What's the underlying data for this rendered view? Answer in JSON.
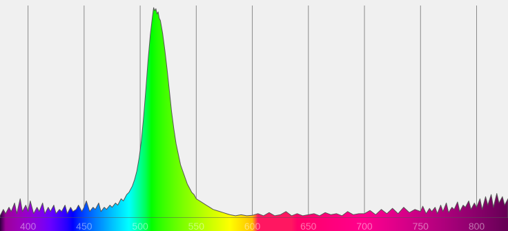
{
  "chart_data": {
    "type": "area",
    "title": "",
    "xlabel": "",
    "ylabel": "",
    "xlim": [
      375,
      828
    ],
    "ylim": [
      0,
      1.0
    ],
    "grid": true,
    "x_ticks": [
      400,
      450,
      500,
      550,
      600,
      650,
      700,
      750,
      800
    ],
    "x_tick_labels": [
      "400",
      "450",
      "500",
      "550",
      "600",
      "650",
      "700",
      "750",
      "800"
    ],
    "series": [
      {
        "points": [
          [
            375,
            0.01
          ],
          [
            378,
            0.04
          ],
          [
            380,
            0.02
          ],
          [
            383,
            0.05
          ],
          [
            385,
            0.03
          ],
          [
            388,
            0.07
          ],
          [
            390,
            0.02
          ],
          [
            393,
            0.09
          ],
          [
            395,
            0.03
          ],
          [
            398,
            0.06
          ],
          [
            400,
            0.03
          ],
          [
            402,
            0.08
          ],
          [
            405,
            0.02
          ],
          [
            408,
            0.05
          ],
          [
            410,
            0.03
          ],
          [
            413,
            0.07
          ],
          [
            415,
            0.02
          ],
          [
            418,
            0.05
          ],
          [
            420,
            0.03
          ],
          [
            423,
            0.06
          ],
          [
            425,
            0.02
          ],
          [
            428,
            0.04
          ],
          [
            430,
            0.03
          ],
          [
            433,
            0.06
          ],
          [
            435,
            0.02
          ],
          [
            438,
            0.05
          ],
          [
            440,
            0.03
          ],
          [
            443,
            0.04
          ],
          [
            445,
            0.06
          ],
          [
            448,
            0.03
          ],
          [
            450,
            0.05
          ],
          [
            452,
            0.08
          ],
          [
            455,
            0.03
          ],
          [
            458,
            0.05
          ],
          [
            460,
            0.04
          ],
          [
            463,
            0.07
          ],
          [
            465,
            0.03
          ],
          [
            468,
            0.05
          ],
          [
            470,
            0.04
          ],
          [
            473,
            0.06
          ],
          [
            475,
            0.05
          ],
          [
            478,
            0.07
          ],
          [
            480,
            0.06
          ],
          [
            483,
            0.09
          ],
          [
            485,
            0.08
          ],
          [
            488,
            0.11
          ],
          [
            490,
            0.12
          ],
          [
            493,
            0.15
          ],
          [
            495,
            0.18
          ],
          [
            497,
            0.22
          ],
          [
            499,
            0.28
          ],
          [
            501,
            0.36
          ],
          [
            503,
            0.47
          ],
          [
            505,
            0.6
          ],
          [
            507,
            0.74
          ],
          [
            509,
            0.86
          ],
          [
            511,
            0.95
          ],
          [
            512,
            0.99
          ],
          [
            513,
            0.975
          ],
          [
            514,
            0.985
          ],
          [
            515,
            0.96
          ],
          [
            516,
            0.97
          ],
          [
            517,
            0.94
          ],
          [
            518,
            0.93
          ],
          [
            519,
            0.9
          ],
          [
            520,
            0.87
          ],
          [
            522,
            0.79
          ],
          [
            524,
            0.7
          ],
          [
            526,
            0.6
          ],
          [
            528,
            0.5
          ],
          [
            530,
            0.42
          ],
          [
            532,
            0.35
          ],
          [
            534,
            0.3
          ],
          [
            536,
            0.25
          ],
          [
            538,
            0.22
          ],
          [
            540,
            0.19
          ],
          [
            542,
            0.16
          ],
          [
            544,
            0.14
          ],
          [
            546,
            0.12
          ],
          [
            548,
            0.11
          ],
          [
            550,
            0.09
          ],
          [
            553,
            0.08
          ],
          [
            556,
            0.07
          ],
          [
            559,
            0.06
          ],
          [
            562,
            0.05
          ],
          [
            565,
            0.04
          ],
          [
            568,
            0.035
          ],
          [
            571,
            0.03
          ],
          [
            574,
            0.025
          ],
          [
            577,
            0.02
          ],
          [
            580,
            0.015
          ],
          [
            585,
            0.01
          ],
          [
            590,
            0.015
          ],
          [
            595,
            0.01
          ],
          [
            600,
            0.012
          ],
          [
            605,
            0.02
          ],
          [
            610,
            0.01
          ],
          [
            615,
            0.025
          ],
          [
            620,
            0.01
          ],
          [
            625,
            0.015
          ],
          [
            630,
            0.03
          ],
          [
            635,
            0.01
          ],
          [
            640,
            0.02
          ],
          [
            645,
            0.01
          ],
          [
            650,
            0.015
          ],
          [
            655,
            0.02
          ],
          [
            660,
            0.01
          ],
          [
            665,
            0.025
          ],
          [
            670,
            0.015
          ],
          [
            675,
            0.02
          ],
          [
            680,
            0.01
          ],
          [
            685,
            0.03
          ],
          [
            690,
            0.015
          ],
          [
            695,
            0.02
          ],
          [
            700,
            0.02
          ],
          [
            705,
            0.035
          ],
          [
            710,
            0.015
          ],
          [
            715,
            0.04
          ],
          [
            720,
            0.02
          ],
          [
            725,
            0.045
          ],
          [
            730,
            0.02
          ],
          [
            735,
            0.05
          ],
          [
            740,
            0.025
          ],
          [
            745,
            0.04
          ],
          [
            750,
            0.03
          ],
          [
            752,
            0.055
          ],
          [
            755,
            0.02
          ],
          [
            758,
            0.045
          ],
          [
            760,
            0.03
          ],
          [
            763,
            0.05
          ],
          [
            765,
            0.02
          ],
          [
            768,
            0.06
          ],
          [
            770,
            0.03
          ],
          [
            773,
            0.07
          ],
          [
            775,
            0.025
          ],
          [
            778,
            0.05
          ],
          [
            780,
            0.04
          ],
          [
            783,
            0.075
          ],
          [
            785,
            0.03
          ],
          [
            788,
            0.06
          ],
          [
            790,
            0.05
          ],
          [
            793,
            0.08
          ],
          [
            795,
            0.04
          ],
          [
            798,
            0.07
          ],
          [
            800,
            0.05
          ],
          [
            803,
            0.09
          ],
          [
            805,
            0.04
          ],
          [
            808,
            0.1
          ],
          [
            810,
            0.06
          ],
          [
            813,
            0.11
          ],
          [
            815,
            0.05
          ],
          [
            818,
            0.115
          ],
          [
            820,
            0.07
          ],
          [
            823,
            0.1
          ],
          [
            825,
            0.06
          ],
          [
            828,
            0.09
          ]
        ]
      }
    ]
  }
}
